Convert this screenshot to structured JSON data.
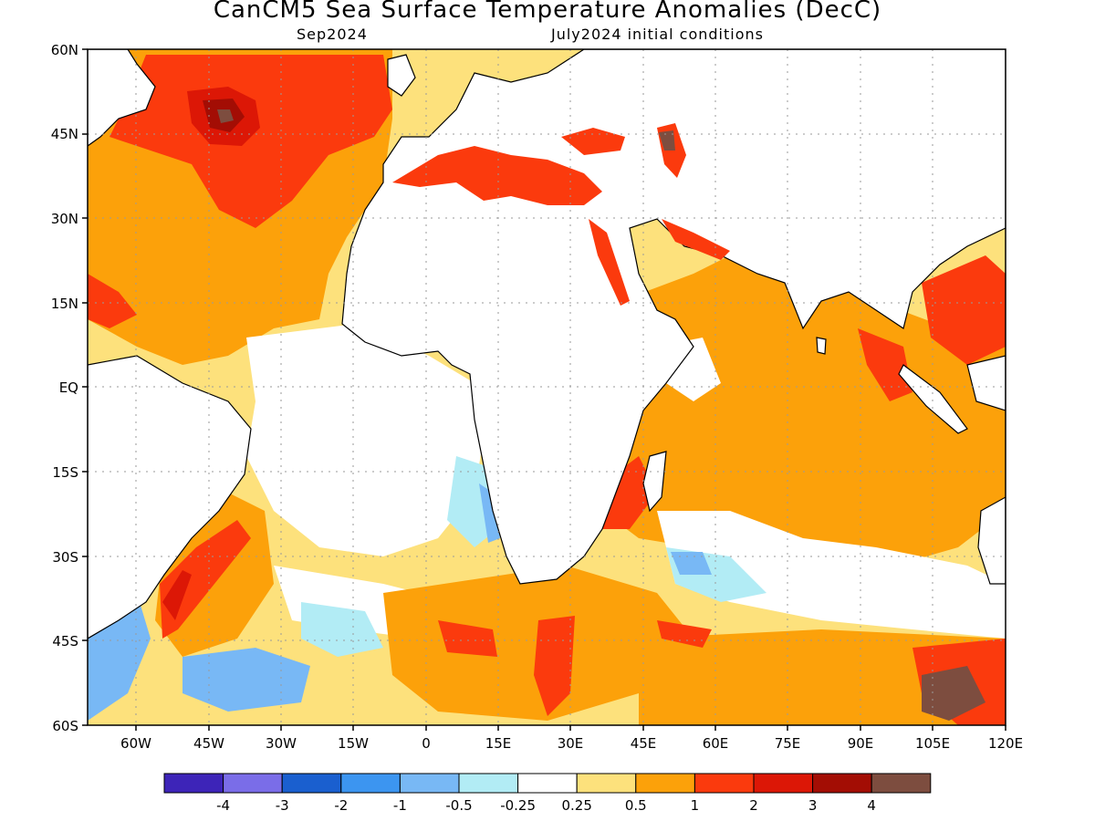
{
  "title": "CanCM5 Sea Surface Temperature Anomalies (DecC)",
  "subtitle_left": "Sep2024",
  "subtitle_right": "July2024 initial conditions",
  "map": {
    "lon_range": [
      -70,
      120
    ],
    "lat_range": [
      -60,
      60
    ],
    "lat_ticks": [
      "60N",
      "45N",
      "30N",
      "15N",
      "EQ",
      "15S",
      "30S",
      "45S",
      "60S"
    ],
    "lon_ticks": [
      "60W",
      "45W",
      "30W",
      "15W",
      "0",
      "15E",
      "30E",
      "45E",
      "60E",
      "75E",
      "90E",
      "105E",
      "120E"
    ],
    "grid": "dotted"
  },
  "colorbar": {
    "colors": [
      "#3d24b8",
      "#7a6de8",
      "#1a5fcf",
      "#3c95f0",
      "#78b8f5",
      "#b2ecf5",
      "#ffffff",
      "#fde17c",
      "#fca10a",
      "#fb3a0d",
      "#dc1706",
      "#a30d04",
      "#7d4d3f"
    ],
    "labels": [
      "-4",
      "-3",
      "-2",
      "-1",
      "-0.5",
      "-0.25",
      "0.25",
      "0.5",
      "1",
      "2",
      "3",
      "4"
    ]
  }
}
